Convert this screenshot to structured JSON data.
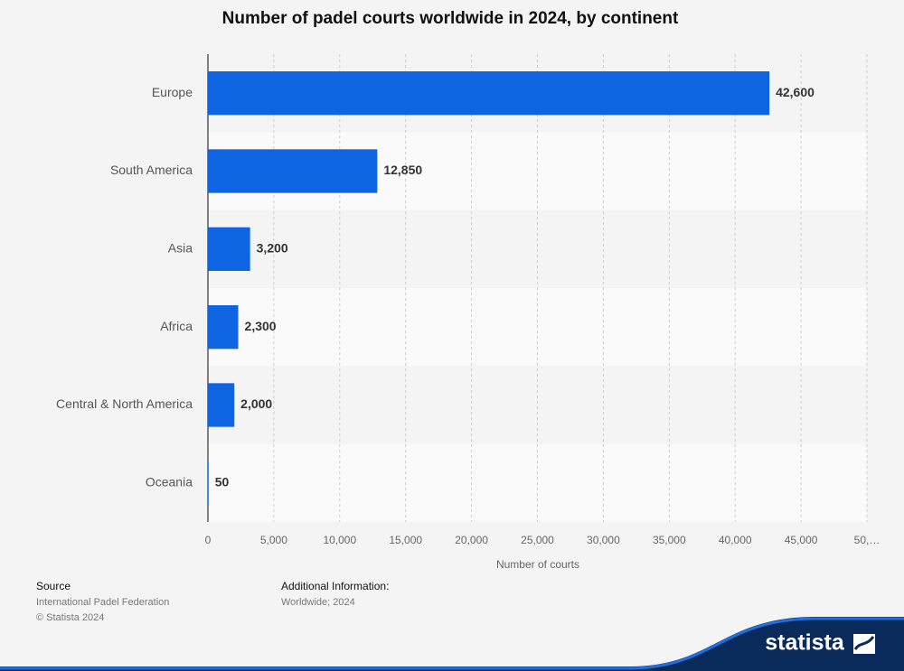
{
  "chart_data": {
    "type": "bar",
    "orientation": "horizontal",
    "title": "Number of padel courts worldwide in 2024, by continent",
    "x_label": "Number of courts",
    "categories": [
      "Europe",
      "South America",
      "Asia",
      "Africa",
      "Central & North America",
      "Oceania"
    ],
    "values": [
      42600,
      12850,
      3200,
      2300,
      2000,
      50
    ],
    "value_labels": [
      "42,600",
      "12,850",
      "3,200",
      "2,300",
      "2,000",
      "50"
    ],
    "color": "#0f64e1",
    "xlim": [
      0,
      50000
    ],
    "xticks": [
      0,
      {
        "value": 5000,
        "label": "5,000"
      },
      {
        "value": 10000,
        "label": "10,000"
      },
      {
        "value": 15000,
        "label": "15,000"
      },
      {
        "value": 20000,
        "label": "20,000"
      },
      {
        "value": 25000,
        "label": "25,000"
      },
      {
        "value": 30000,
        "label": "30,000"
      },
      {
        "value": 35000,
        "label": "35,000"
      },
      {
        "value": 40000,
        "label": "40,000"
      },
      {
        "value": 45000,
        "label": "45,000"
      },
      {
        "value": 50000,
        "label": "50,…"
      }
    ],
    "grid": true
  },
  "footer": {
    "source_heading": "Source",
    "source": "International Padel Federation",
    "copyright": "© Statista 2024",
    "info_heading": "Additional Information:",
    "info": "Worldwide; 2024",
    "logo": "statista"
  }
}
